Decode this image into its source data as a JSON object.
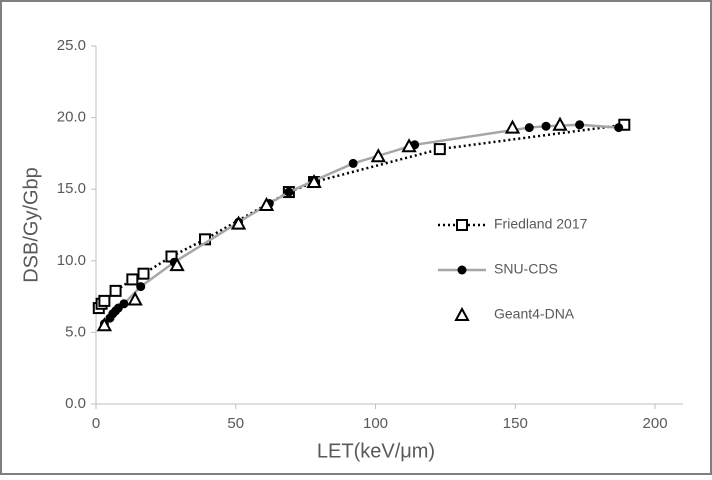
{
  "chart_data": {
    "type": "scatter",
    "x_label": "LET(keV/μm)",
    "y_label": "DSB/Gy/Gbp",
    "xlim": [
      0,
      210
    ],
    "xticks": [
      0,
      50,
      100,
      150,
      200
    ],
    "ylim": [
      0,
      25
    ],
    "yticks": [
      {
        "value": 0,
        "label": "0.0"
      },
      {
        "value": 5,
        "label": "5.0"
      },
      {
        "value": 10,
        "label": "10.0"
      },
      {
        "value": 15,
        "label": "15.0"
      },
      {
        "value": 20,
        "label": "20.0"
      },
      {
        "value": 25,
        "label": "25.0"
      }
    ],
    "legend": "right",
    "series": [
      {
        "name": "Friedland 2017",
        "color": "#000000",
        "marker": "square",
        "line": "dotted",
        "x": [
          1,
          2,
          3,
          7,
          13,
          17,
          27,
          39,
          69,
          78,
          123,
          189
        ],
        "values": [
          6.7,
          7.0,
          7.2,
          7.9,
          8.7,
          9.1,
          10.3,
          11.5,
          14.8,
          15.5,
          17.8,
          19.5
        ]
      },
      {
        "name": "SNU-CDS",
        "color": "#000000",
        "marker": "circle",
        "line": "solid",
        "x": [
          3,
          5,
          6,
          7,
          8,
          10,
          16,
          28,
          51,
          62,
          69,
          78,
          92,
          114,
          155,
          161,
          173,
          187
        ],
        "values": [
          5.6,
          6.0,
          6.3,
          6.5,
          6.7,
          7.0,
          8.2,
          9.9,
          12.7,
          14.0,
          14.8,
          15.6,
          16.8,
          18.1,
          19.3,
          19.4,
          19.5,
          19.3
        ]
      },
      {
        "name": "Geant4-DNA",
        "color": "#000000",
        "marker": "triangle",
        "line": "none",
        "x": [
          3,
          14,
          29,
          51,
          61,
          78,
          101,
          112,
          149,
          166
        ],
        "values": [
          5.5,
          7.3,
          9.7,
          12.6,
          13.9,
          15.5,
          17.3,
          18.0,
          19.3,
          19.5
        ]
      }
    ]
  }
}
